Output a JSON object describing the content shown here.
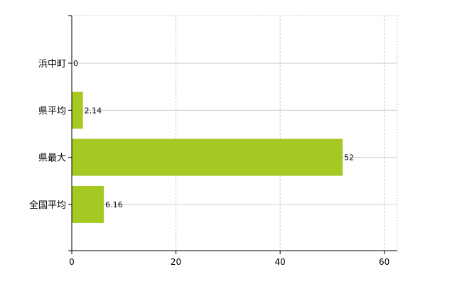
{
  "chart_data": {
    "type": "bar",
    "orientation": "horizontal",
    "categories": [
      "浜中町",
      "県平均",
      "県最大",
      "全国平均"
    ],
    "values": [
      0,
      2.14,
      52,
      6.16
    ],
    "value_labels": [
      "0",
      "2.14",
      "52",
      "6.16"
    ],
    "xlim": [
      0,
      62.5
    ],
    "xticks": [
      0,
      20,
      40,
      60
    ],
    "xtick_labels": [
      "0",
      "20",
      "40",
      "60"
    ],
    "grid": true,
    "legend": "none",
    "bar_color": "#a6c823",
    "title": "",
    "xlabel": "",
    "ylabel": ""
  }
}
